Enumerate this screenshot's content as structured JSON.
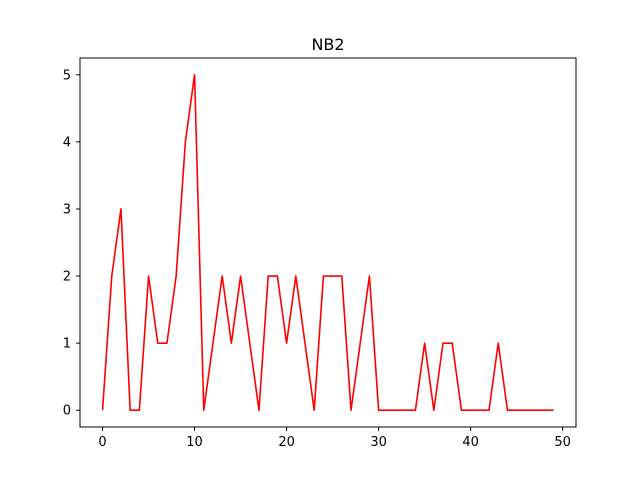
{
  "chart_data": {
    "type": "line",
    "title": "NB2",
    "xlabel": "",
    "ylabel": "",
    "xlim": [
      -2.45,
      51.45
    ],
    "ylim": [
      -0.25,
      5.25
    ],
    "xticks": [
      0,
      10,
      20,
      30,
      40,
      50
    ],
    "yticks": [
      0,
      1,
      2,
      3,
      4,
      5
    ],
    "grid": false,
    "legend": "none",
    "series": [
      {
        "color": "#ff0000",
        "x": [
          0,
          1,
          2,
          3,
          4,
          5,
          6,
          7,
          8,
          9,
          10,
          11,
          12,
          13,
          14,
          15,
          16,
          17,
          18,
          19,
          20,
          21,
          22,
          23,
          24,
          25,
          26,
          27,
          28,
          29,
          30,
          31,
          32,
          33,
          34,
          35,
          36,
          37,
          38,
          39,
          40,
          41,
          42,
          43,
          44,
          45,
          46,
          47,
          48,
          49
        ],
        "values": [
          0,
          2,
          3,
          0,
          0,
          2,
          1,
          1,
          2,
          4,
          5,
          0,
          1,
          2,
          1,
          2,
          1,
          0,
          2,
          2,
          1,
          2,
          1,
          0,
          2,
          2,
          2,
          0,
          1,
          2,
          0,
          0,
          0,
          0,
          0,
          1,
          0,
          1,
          1,
          0,
          0,
          0,
          0,
          1,
          0,
          0,
          0,
          0,
          0,
          0
        ]
      }
    ]
  }
}
